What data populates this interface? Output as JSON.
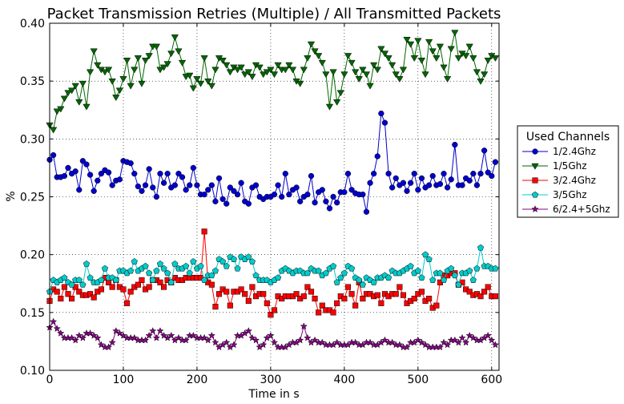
{
  "chart_data": {
    "type": "line",
    "title": "Packet Transmission Retries (Multiple) / All Transmitted Packets",
    "xlabel": "Time in s",
    "ylabel": "%",
    "xlim": [
      0,
      610
    ],
    "ylim": [
      0.1,
      0.4
    ],
    "xticks": [
      0,
      100,
      200,
      300,
      400,
      500,
      600
    ],
    "yticks": [
      0.1,
      0.15,
      0.2,
      0.25,
      0.3,
      0.35,
      0.4
    ],
    "xtick_labels": [
      "0",
      "100",
      "200",
      "300",
      "400",
      "500",
      "600"
    ],
    "ytick_labels": [
      "0.10",
      "0.15",
      "0.20",
      "0.25",
      "0.30",
      "0.35",
      "0.40"
    ],
    "grid": true,
    "legend": {
      "title": "Used Channels",
      "placement": "outside-right"
    },
    "x": [
      0,
      5,
      10,
      15,
      20,
      25,
      30,
      35,
      40,
      45,
      50,
      55,
      60,
      65,
      70,
      75,
      80,
      85,
      90,
      95,
      100,
      105,
      110,
      115,
      120,
      125,
      130,
      135,
      140,
      145,
      150,
      155,
      160,
      165,
      170,
      175,
      180,
      185,
      190,
      195,
      200,
      205,
      210,
      215,
      220,
      225,
      230,
      235,
      240,
      245,
      250,
      255,
      260,
      265,
      270,
      275,
      280,
      285,
      290,
      295,
      300,
      305,
      310,
      315,
      320,
      325,
      330,
      335,
      340,
      345,
      350,
      355,
      360,
      365,
      370,
      375,
      380,
      385,
      390,
      395,
      400,
      405,
      410,
      415,
      420,
      425,
      430,
      435,
      440,
      445,
      450,
      455,
      460,
      465,
      470,
      475,
      480,
      485,
      490,
      495,
      500,
      505,
      510,
      515,
      520,
      525,
      530,
      535,
      540,
      545,
      550,
      555,
      560,
      565,
      570,
      575,
      580,
      585,
      590,
      595,
      600,
      605
    ],
    "series": [
      {
        "name": "1/2.4Ghz",
        "color": "#0000cc",
        "marker": "circle",
        "values": [
          0.282,
          0.286,
          0.267,
          0.267,
          0.268,
          0.275,
          0.27,
          0.272,
          0.256,
          0.281,
          0.278,
          0.269,
          0.255,
          0.264,
          0.27,
          0.273,
          0.271,
          0.26,
          0.264,
          0.265,
          0.281,
          0.28,
          0.279,
          0.27,
          0.259,
          0.255,
          0.26,
          0.274,
          0.258,
          0.25,
          0.27,
          0.262,
          0.27,
          0.258,
          0.26,
          0.27,
          0.267,
          0.256,
          0.26,
          0.275,
          0.26,
          0.252,
          0.252,
          0.256,
          0.26,
          0.246,
          0.266,
          0.248,
          0.244,
          0.258,
          0.255,
          0.252,
          0.262,
          0.246,
          0.244,
          0.258,
          0.26,
          0.25,
          0.248,
          0.25,
          0.25,
          0.252,
          0.26,
          0.25,
          0.27,
          0.252,
          0.256,
          0.258,
          0.246,
          0.25,
          0.252,
          0.268,
          0.245,
          0.254,
          0.256,
          0.246,
          0.24,
          0.25,
          0.245,
          0.254,
          0.254,
          0.27,
          0.256,
          0.253,
          0.252,
          0.252,
          0.237,
          0.262,
          0.27,
          0.285,
          0.322,
          0.314,
          0.27,
          0.258,
          0.266,
          0.26,
          0.262,
          0.255,
          0.262,
          0.27,
          0.256,
          0.266,
          0.258,
          0.26,
          0.268,
          0.26,
          0.261,
          0.27,
          0.258,
          0.265,
          0.295,
          0.26,
          0.26,
          0.266,
          0.264,
          0.27,
          0.26,
          0.27,
          0.29,
          0.271,
          0.268,
          0.28
        ]
      },
      {
        "name": "1/5Ghz",
        "color": "#006600",
        "marker": "triangle-down",
        "values": [
          0.312,
          0.308,
          0.324,
          0.326,
          0.335,
          0.34,
          0.342,
          0.346,
          0.332,
          0.348,
          0.328,
          0.358,
          0.376,
          0.364,
          0.36,
          0.358,
          0.36,
          0.35,
          0.336,
          0.342,
          0.352,
          0.368,
          0.346,
          0.36,
          0.37,
          0.348,
          0.368,
          0.372,
          0.38,
          0.38,
          0.36,
          0.362,
          0.365,
          0.374,
          0.388,
          0.376,
          0.366,
          0.354,
          0.355,
          0.344,
          0.352,
          0.348,
          0.37,
          0.35,
          0.346,
          0.36,
          0.37,
          0.368,
          0.364,
          0.358,
          0.362,
          0.36,
          0.362,
          0.356,
          0.358,
          0.354,
          0.364,
          0.362,
          0.356,
          0.358,
          0.36,
          0.356,
          0.364,
          0.36,
          0.36,
          0.364,
          0.36,
          0.35,
          0.348,
          0.36,
          0.37,
          0.382,
          0.376,
          0.372,
          0.366,
          0.356,
          0.328,
          0.358,
          0.332,
          0.34,
          0.356,
          0.372,
          0.366,
          0.358,
          0.352,
          0.36,
          0.356,
          0.346,
          0.364,
          0.36,
          0.378,
          0.374,
          0.37,
          0.364,
          0.356,
          0.352,
          0.36,
          0.386,
          0.382,
          0.37,
          0.385,
          0.368,
          0.356,
          0.384,
          0.376,
          0.37,
          0.38,
          0.362,
          0.352,
          0.378,
          0.392,
          0.37,
          0.374,
          0.372,
          0.38,
          0.37,
          0.358,
          0.35,
          0.356,
          0.368,
          0.372,
          0.37
        ]
      },
      {
        "name": "3/2.4Ghz",
        "color": "#ff0000",
        "marker": "square",
        "values": [
          0.16,
          0.17,
          0.168,
          0.162,
          0.172,
          0.166,
          0.162,
          0.172,
          0.168,
          0.165,
          0.165,
          0.166,
          0.163,
          0.168,
          0.17,
          0.18,
          0.176,
          0.172,
          0.178,
          0.172,
          0.17,
          0.158,
          0.168,
          0.172,
          0.174,
          0.178,
          0.17,
          0.172,
          0.178,
          0.178,
          0.176,
          0.172,
          0.178,
          0.176,
          0.18,
          0.178,
          0.178,
          0.18,
          0.18,
          0.18,
          0.18,
          0.18,
          0.22,
          0.176,
          0.174,
          0.155,
          0.166,
          0.17,
          0.168,
          0.156,
          0.168,
          0.168,
          0.17,
          0.166,
          0.16,
          0.172,
          0.164,
          0.166,
          0.166,
          0.158,
          0.148,
          0.152,
          0.164,
          0.162,
          0.164,
          0.164,
          0.164,
          0.166,
          0.162,
          0.164,
          0.172,
          0.168,
          0.162,
          0.15,
          0.156,
          0.152,
          0.152,
          0.15,
          0.158,
          0.164,
          0.162,
          0.172,
          0.166,
          0.156,
          0.176,
          0.162,
          0.166,
          0.166,
          0.164,
          0.165,
          0.158,
          0.166,
          0.164,
          0.166,
          0.166,
          0.172,
          0.165,
          0.158,
          0.16,
          0.162,
          0.166,
          0.168,
          0.16,
          0.162,
          0.154,
          0.156,
          0.176,
          0.182,
          0.182,
          0.184,
          0.184,
          0.174,
          0.176,
          0.17,
          0.168,
          0.165,
          0.166,
          0.164,
          0.168,
          0.172,
          0.164,
          0.164
        ]
      },
      {
        "name": "3/5Ghz",
        "color": "#00cccc",
        "marker": "pentagon",
        "values": [
          0.168,
          0.178,
          0.176,
          0.178,
          0.18,
          0.176,
          0.174,
          0.178,
          0.178,
          0.174,
          0.192,
          0.18,
          0.176,
          0.176,
          0.178,
          0.188,
          0.18,
          0.18,
          0.178,
          0.186,
          0.186,
          0.184,
          0.186,
          0.194,
          0.186,
          0.188,
          0.19,
          0.184,
          0.178,
          0.186,
          0.192,
          0.188,
          0.184,
          0.176,
          0.192,
          0.188,
          0.188,
          0.19,
          0.184,
          0.194,
          0.188,
          0.19,
          0.178,
          0.182,
          0.182,
          0.186,
          0.196,
          0.194,
          0.19,
          0.198,
          0.196,
          0.188,
          0.198,
          0.196,
          0.198,
          0.194,
          0.182,
          0.178,
          0.178,
          0.178,
          0.176,
          0.178,
          0.18,
          0.186,
          0.188,
          0.186,
          0.184,
          0.186,
          0.186,
          0.184,
          0.184,
          0.188,
          0.186,
          0.186,
          0.182,
          0.184,
          0.188,
          0.19,
          0.176,
          0.18,
          0.184,
          0.19,
          0.188,
          0.18,
          0.178,
          0.174,
          0.18,
          0.178,
          0.176,
          0.18,
          0.18,
          0.182,
          0.18,
          0.186,
          0.184,
          0.184,
          0.186,
          0.188,
          0.19,
          0.184,
          0.186,
          0.18,
          0.2,
          0.196,
          0.178,
          0.184,
          0.184,
          0.178,
          0.186,
          0.188,
          0.182,
          0.174,
          0.184,
          0.184,
          0.186,
          0.178,
          0.188,
          0.206,
          0.19,
          0.19,
          0.188,
          0.188
        ]
      },
      {
        "name": "6/2.4+5Ghz",
        "color": "#880088",
        "marker": "star",
        "values": [
          0.137,
          0.142,
          0.136,
          0.132,
          0.128,
          0.128,
          0.128,
          0.126,
          0.13,
          0.128,
          0.132,
          0.132,
          0.13,
          0.128,
          0.122,
          0.12,
          0.12,
          0.124,
          0.134,
          0.132,
          0.13,
          0.128,
          0.128,
          0.128,
          0.126,
          0.126,
          0.126,
          0.13,
          0.134,
          0.128,
          0.134,
          0.13,
          0.128,
          0.13,
          0.126,
          0.128,
          0.126,
          0.126,
          0.13,
          0.13,
          0.128,
          0.128,
          0.128,
          0.126,
          0.13,
          0.124,
          0.12,
          0.122,
          0.124,
          0.12,
          0.122,
          0.13,
          0.13,
          0.132,
          0.134,
          0.128,
          0.126,
          0.12,
          0.122,
          0.128,
          0.13,
          0.124,
          0.12,
          0.12,
          0.12,
          0.122,
          0.124,
          0.124,
          0.126,
          0.138,
          0.128,
          0.124,
          0.126,
          0.124,
          0.124,
          0.122,
          0.122,
          0.122,
          0.124,
          0.122,
          0.122,
          0.122,
          0.124,
          0.124,
          0.122,
          0.122,
          0.124,
          0.124,
          0.122,
          0.122,
          0.124,
          0.126,
          0.124,
          0.124,
          0.122,
          0.122,
          0.12,
          0.12,
          0.124,
          0.124,
          0.126,
          0.124,
          0.122,
          0.12,
          0.12,
          0.12,
          0.12,
          0.124,
          0.122,
          0.126,
          0.126,
          0.124,
          0.128,
          0.124,
          0.13,
          0.128,
          0.126,
          0.126,
          0.128,
          0.13,
          0.126,
          0.122
        ]
      }
    ]
  }
}
